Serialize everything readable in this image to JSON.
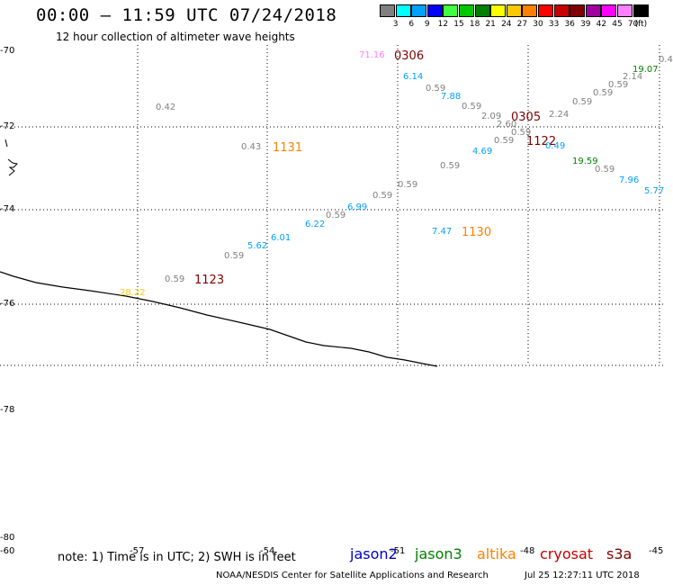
{
  "header": {
    "title": "00:00 — 11:59 UTC 07/24/2018",
    "subtitle": "12 hour collection of altimeter wave heights"
  },
  "legend": {
    "ticks": [
      "3",
      "6",
      "9",
      "12",
      "15",
      "18",
      "21",
      "24",
      "27",
      "30",
      "33",
      "36",
      "39",
      "42",
      "45",
      "70"
    ],
    "unit": "(ft)",
    "colors": [
      "#808080",
      "#00ffff",
      "#00a0ff",
      "#0000ff",
      "#40ff40",
      "#00c800",
      "#008000",
      "#ffff00",
      "#ffc800",
      "#ff8000",
      "#ff0000",
      "#c80000",
      "#800000",
      "#a000a0",
      "#ff00ff",
      "#ff80ff",
      "#000000"
    ]
  },
  "map": {
    "lat_labels": [
      "-70",
      "-72",
      "-74",
      "-76",
      "-78",
      "-80"
    ],
    "lon_labels": [
      "-60",
      "-57",
      "-54",
      "-51",
      "-48",
      "-45"
    ]
  },
  "wave_labels": [
    {
      "text": "71.16",
      "color": "#ff80ff"
    },
    {
      "text": "0306",
      "color": "#800000"
    },
    {
      "text": "6.14",
      "color": "#00a0ff"
    },
    {
      "text": "0.59",
      "color": "#808080"
    },
    {
      "text": "7.88",
      "color": "#00a0ff"
    },
    {
      "text": "0.59",
      "color": "#808080"
    },
    {
      "text": "2.09",
      "color": "#808080"
    },
    {
      "text": "0305",
      "color": "#800000"
    },
    {
      "text": "2.24",
      "color": "#808080"
    },
    {
      "text": "2.60",
      "color": "#808080"
    },
    {
      "text": "0.59",
      "color": "#808080"
    },
    {
      "text": "0.59",
      "color": "#808080"
    },
    {
      "text": "1122",
      "color": "#800000"
    },
    {
      "text": "4.69",
      "color": "#00a0ff"
    },
    {
      "text": "0.49",
      "color": "#00a0ff"
    },
    {
      "text": "0.59",
      "color": "#808080"
    },
    {
      "text": "19.59",
      "color": "#008000"
    },
    {
      "text": "0.59",
      "color": "#808080"
    },
    {
      "text": "7.96",
      "color": "#00a0ff"
    },
    {
      "text": "5.77",
      "color": "#00a0ff"
    },
    {
      "text": "0.59",
      "color": "#808080"
    },
    {
      "text": "0.59",
      "color": "#808080"
    },
    {
      "text": "0.59",
      "color": "#808080"
    },
    {
      "text": "2.14",
      "color": "#808080"
    },
    {
      "text": "19.07",
      "color": "#008000"
    },
    {
      "text": "0.4",
      "color": "#808080"
    },
    {
      "text": "0.42",
      "color": "#808080"
    },
    {
      "text": "0.43",
      "color": "#808080"
    },
    {
      "text": "1131",
      "color": "#ff8000"
    },
    {
      "text": "0.59",
      "color": "#808080"
    },
    {
      "text": "0.59",
      "color": "#808080"
    },
    {
      "text": "6.99",
      "color": "#00a0ff"
    },
    {
      "text": "0.59",
      "color": "#808080"
    },
    {
      "text": "6.22",
      "color": "#00a0ff"
    },
    {
      "text": "6.01",
      "color": "#00a0ff"
    },
    {
      "text": "5.62",
      "color": "#00a0ff"
    },
    {
      "text": "0.59",
      "color": "#808080"
    },
    {
      "text": "7.47",
      "color": "#00a0ff"
    },
    {
      "text": "1130",
      "color": "#ff8000"
    },
    {
      "text": "0.59",
      "color": "#808080"
    },
    {
      "text": "1123",
      "color": "#800000"
    },
    {
      "text": "28.22",
      "color": "#ffc800"
    }
  ],
  "footer": {
    "note": "note: 1) Time is in UTC; 2) SWH is in feet",
    "satellites": [
      {
        "name": "jason2",
        "color": "#0000c8"
      },
      {
        "name": "jason3",
        "color": "#008000"
      },
      {
        "name": "altika",
        "color": "#ff8000"
      },
      {
        "name": "cryosat",
        "color": "#c80000"
      },
      {
        "name": "s3a",
        "color": "#800000"
      }
    ],
    "credit": "NOAA/NESDIS Center for Satellite Applications and Research",
    "generated": "Jul 25 12:27:11 UTC 2018"
  }
}
